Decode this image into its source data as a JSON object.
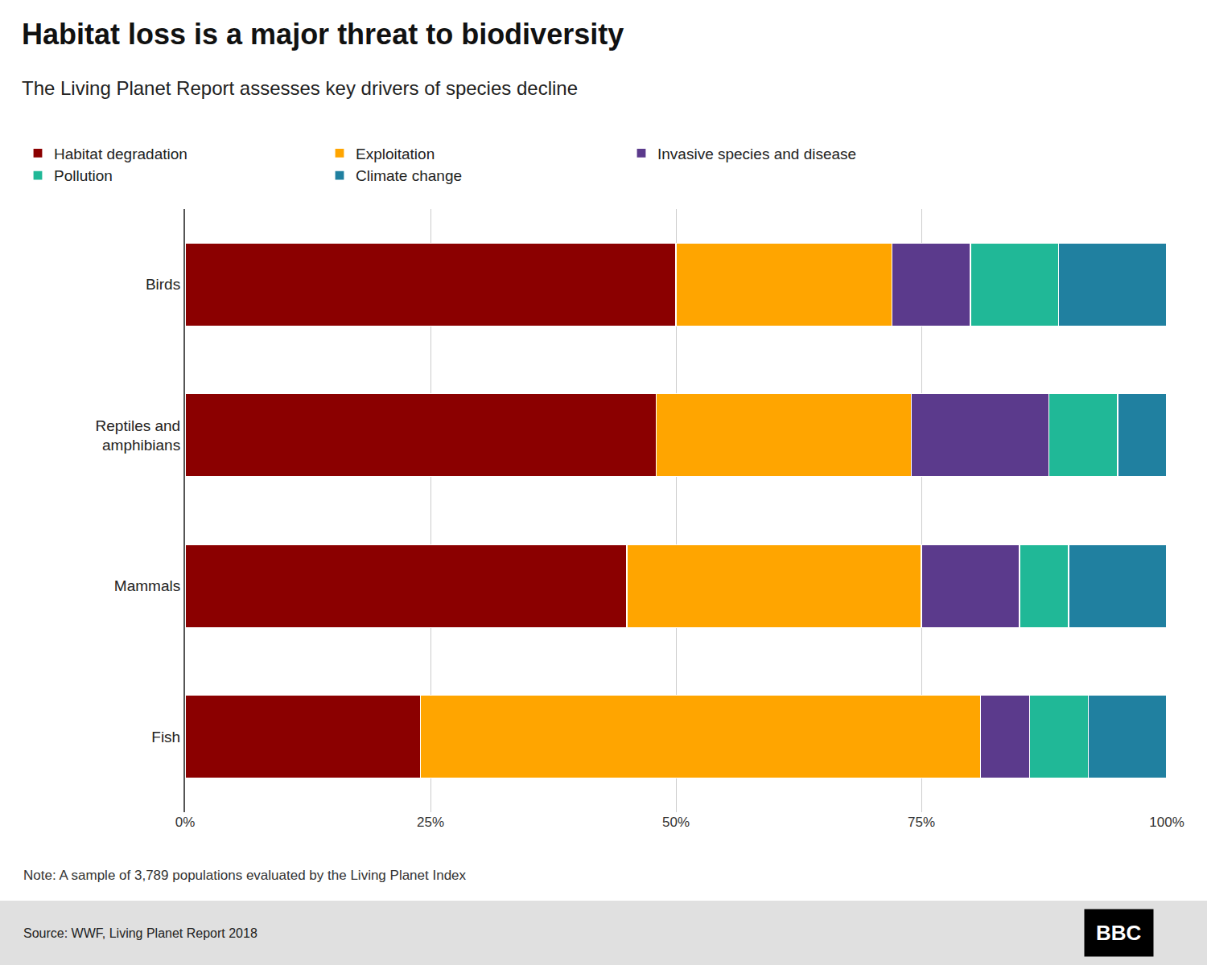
{
  "chart_data": {
    "type": "bar",
    "orientation": "horizontal",
    "stacked": true,
    "title": "Habitat loss is a major threat to biodiversity",
    "subtitle": "The Living Planet Report assesses key drivers of species decline",
    "categories": [
      "Birds",
      "Reptiles and\namphibians",
      "Mammals",
      "Fish"
    ],
    "series": [
      {
        "name": "Habitat degradation",
        "color": "#8B0000",
        "values": [
          50,
          48,
          45,
          24
        ]
      },
      {
        "name": "Exploitation",
        "color": "#FFA500",
        "values": [
          22,
          26,
          30,
          57
        ]
      },
      {
        "name": "Invasive species and disease",
        "color": "#5B3A8C",
        "values": [
          8,
          14,
          10,
          5
        ]
      },
      {
        "name": "Pollution",
        "color": "#20B897",
        "values": [
          9,
          7,
          5,
          6
        ]
      },
      {
        "name": "Climate change",
        "color": "#2080A0",
        "values": [
          11,
          5,
          10,
          8
        ]
      }
    ],
    "xlim": [
      0,
      100
    ],
    "xticks": [
      {
        "value": 0,
        "label": "0%"
      },
      {
        "value": 25,
        "label": "25%"
      },
      {
        "value": 50,
        "label": "50%"
      },
      {
        "value": 75,
        "label": "75%"
      },
      {
        "value": 100,
        "label": "100%"
      }
    ],
    "grid": true,
    "legend": "top",
    "annotations": [
      "Note: A sample of 3,789 populations evaluated by the Living Planet Index",
      "Source: WWF, Living Planet Report 2018",
      "BBC"
    ]
  }
}
